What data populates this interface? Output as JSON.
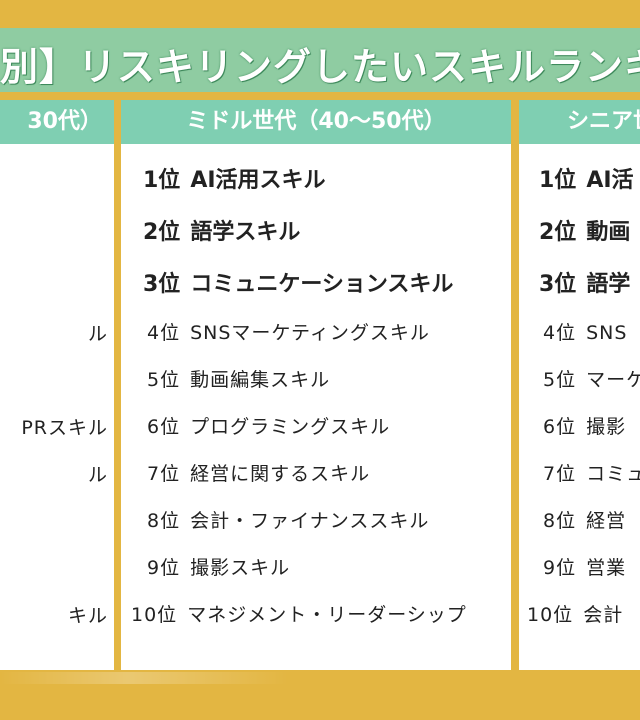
{
  "title": "別】リスキリングしたいスキルランキン",
  "left_panel": {
    "header": "30代）",
    "items": [
      "ル",
      "PRスキル",
      "ル",
      "キル"
    ]
  },
  "mid_panel": {
    "header": "ミドル世代（40～50代）",
    "items": [
      {
        "rank": "1位",
        "skill": "AI活用スキル"
      },
      {
        "rank": "2位",
        "skill": "語学スキル"
      },
      {
        "rank": "3位",
        "skill": "コミュニケーションスキル"
      },
      {
        "rank": "4位",
        "skill": "SNSマーケティングスキル"
      },
      {
        "rank": "5位",
        "skill": "動画編集スキル"
      },
      {
        "rank": "6位",
        "skill": "プログラミングスキル"
      },
      {
        "rank": "7位",
        "skill": "経営に関するスキル"
      },
      {
        "rank": "8位",
        "skill": "会計・ファイナンススキル"
      },
      {
        "rank": "9位",
        "skill": "撮影スキル"
      },
      {
        "rank": "10位",
        "skill": "マネジメント・リーダーシップ"
      }
    ]
  },
  "right_panel": {
    "header": "シニア世",
    "items": [
      {
        "rank": "1位",
        "skill": "AI活"
      },
      {
        "rank": "2位",
        "skill": "動画"
      },
      {
        "rank": "3位",
        "skill": "語学"
      },
      {
        "rank": "4位",
        "skill": "SNS"
      },
      {
        "rank": "5位",
        "skill": "マーケ"
      },
      {
        "rank": "6位",
        "skill": "撮影"
      },
      {
        "rank": "7位",
        "skill": "コミュ"
      },
      {
        "rank": "8位",
        "skill": "経営"
      },
      {
        "rank": "9位",
        "skill": "営業"
      },
      {
        "rank": "10位",
        "skill": "会計"
      }
    ]
  }
}
